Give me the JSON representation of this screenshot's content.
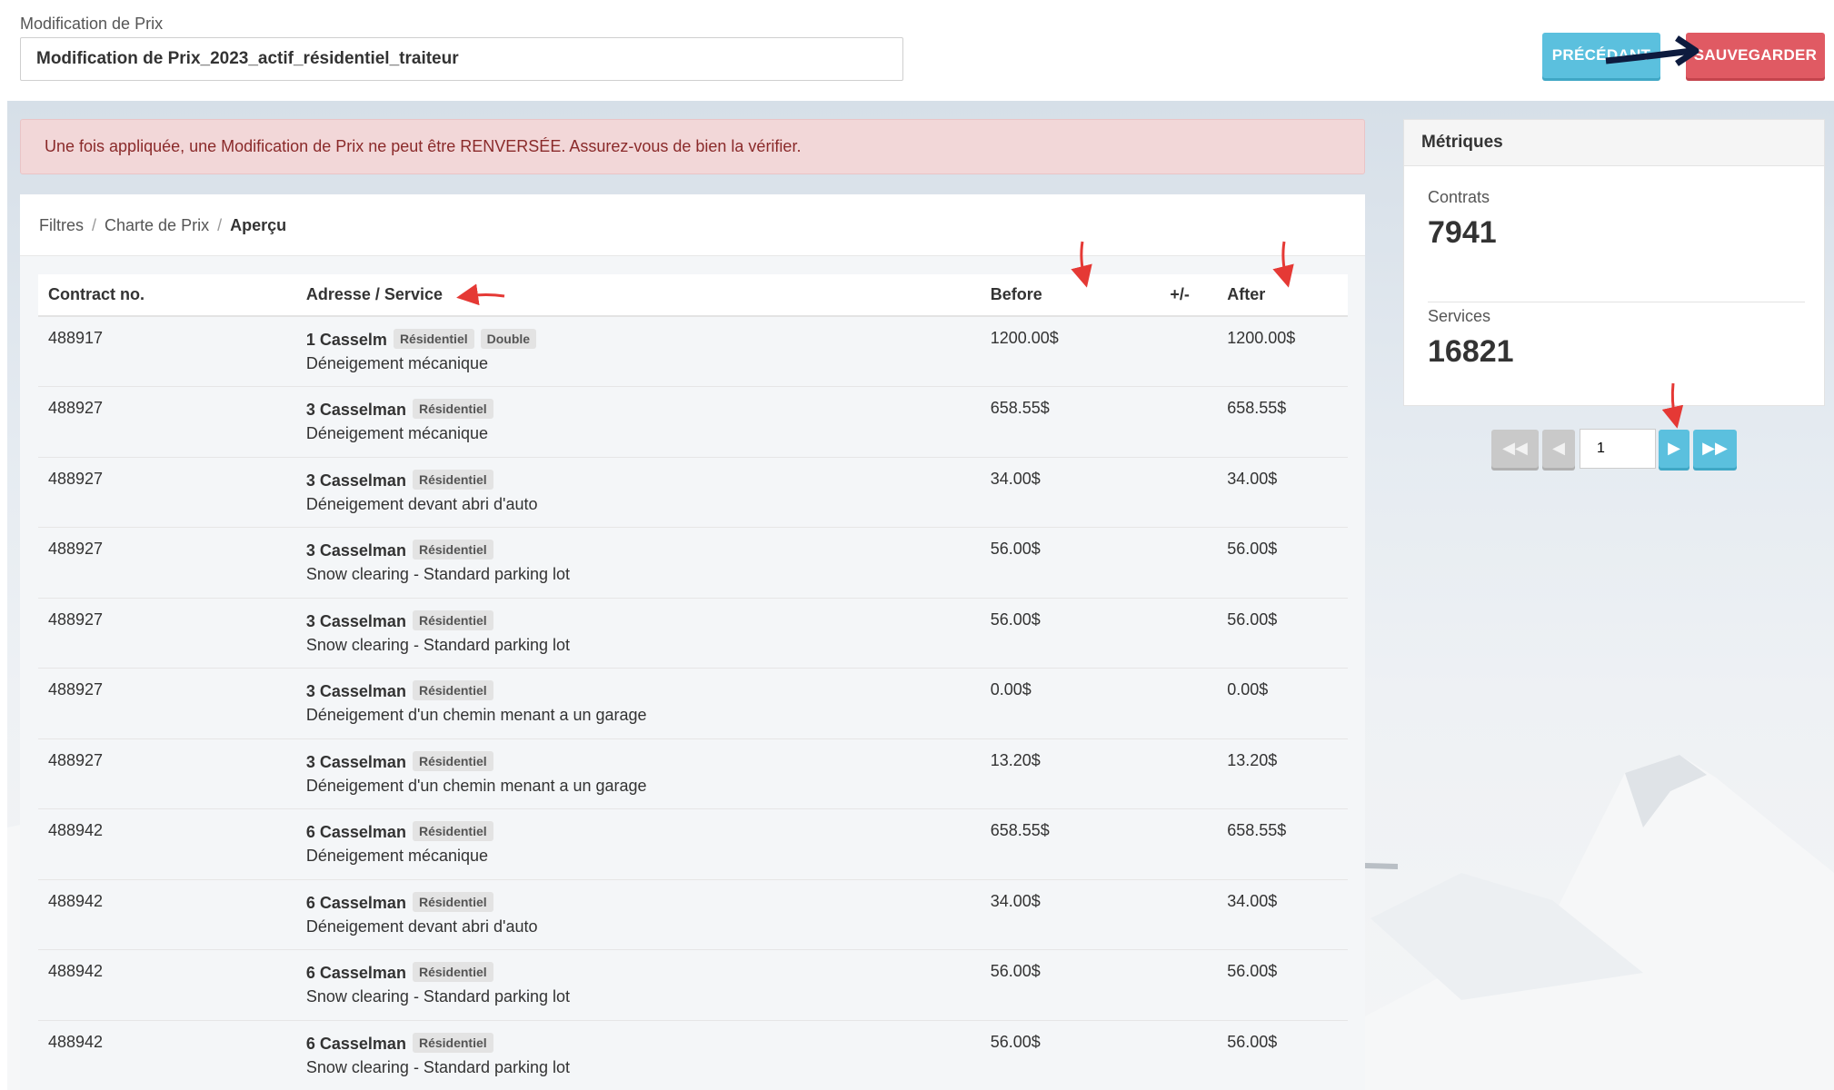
{
  "header": {
    "field_label": "Modification de Prix",
    "name_value": "Modification de Prix_2023_actif_résidentiel_traiteur",
    "prev_label": "PRÉCÉDANT",
    "save_label": "SAUVEGARDER"
  },
  "alert": {
    "text": "Une fois appliquée, une Modification de Prix ne peut être RENVERSÉE. Assurez-vous de bien la vérifier."
  },
  "breadcrumb": {
    "items": [
      "Filtres",
      "Charte de Prix"
    ],
    "active": "Aperçu"
  },
  "table": {
    "columns": [
      "Contract no.",
      "Adresse / Service",
      "Before",
      "+/-",
      "After"
    ],
    "rows": [
      {
        "contract": "488917",
        "address": "1 Casselm",
        "tags": [
          "Résidentiel",
          "Double"
        ],
        "service": "Déneigement mécanique",
        "before": "1200.00$",
        "delta": "",
        "after": "1200.00$"
      },
      {
        "contract": "488927",
        "address": "3 Casselman",
        "tags": [
          "Résidentiel"
        ],
        "service": "Déneigement mécanique",
        "before": "658.55$",
        "delta": "",
        "after": "658.55$"
      },
      {
        "contract": "488927",
        "address": "3 Casselman",
        "tags": [
          "Résidentiel"
        ],
        "service": "Déneigement devant abri d'auto",
        "before": "34.00$",
        "delta": "",
        "after": "34.00$"
      },
      {
        "contract": "488927",
        "address": "3 Casselman",
        "tags": [
          "Résidentiel"
        ],
        "service": "Snow clearing - Standard parking lot",
        "before": "56.00$",
        "delta": "",
        "after": "56.00$"
      },
      {
        "contract": "488927",
        "address": "3 Casselman",
        "tags": [
          "Résidentiel"
        ],
        "service": "Snow clearing - Standard parking lot",
        "before": "56.00$",
        "delta": "",
        "after": "56.00$"
      },
      {
        "contract": "488927",
        "address": "3 Casselman",
        "tags": [
          "Résidentiel"
        ],
        "service": "Déneigement d'un chemin menant a un garage",
        "before": "0.00$",
        "delta": "",
        "after": "0.00$"
      },
      {
        "contract": "488927",
        "address": "3 Casselman",
        "tags": [
          "Résidentiel"
        ],
        "service": "Déneigement d'un chemin menant a un garage",
        "before": "13.20$",
        "delta": "",
        "after": "13.20$"
      },
      {
        "contract": "488942",
        "address": "6 Casselman",
        "tags": [
          "Résidentiel"
        ],
        "service": "Déneigement mécanique",
        "before": "658.55$",
        "delta": "",
        "after": "658.55$"
      },
      {
        "contract": "488942",
        "address": "6 Casselman",
        "tags": [
          "Résidentiel"
        ],
        "service": "Déneigement devant abri d'auto",
        "before": "34.00$",
        "delta": "",
        "after": "34.00$"
      },
      {
        "contract": "488942",
        "address": "6 Casselman",
        "tags": [
          "Résidentiel"
        ],
        "service": "Snow clearing - Standard parking lot",
        "before": "56.00$",
        "delta": "",
        "after": "56.00$"
      },
      {
        "contract": "488942",
        "address": "6 Casselman",
        "tags": [
          "Résidentiel"
        ],
        "service": "Snow clearing - Standard parking lot",
        "before": "56.00$",
        "delta": "",
        "after": "56.00$"
      }
    ]
  },
  "metrics": {
    "title": "Métriques",
    "contracts_label": "Contrats",
    "contracts_value": "7941",
    "services_label": "Services",
    "services_value": "16821"
  },
  "pagination": {
    "page_value": "1",
    "first_icon": "double-chevron-left-icon",
    "prev_icon": "chevron-left-icon",
    "next_icon": "chevron-right-icon",
    "last_icon": "double-chevron-right-icon"
  },
  "colors": {
    "info_button": "#5bc0de",
    "danger_button": "#e05a63",
    "alert_bg": "#f2d7d8",
    "alert_text": "#8a2a2a",
    "annotation_red": "#e53935",
    "annotation_navy": "#0d1b3e"
  }
}
